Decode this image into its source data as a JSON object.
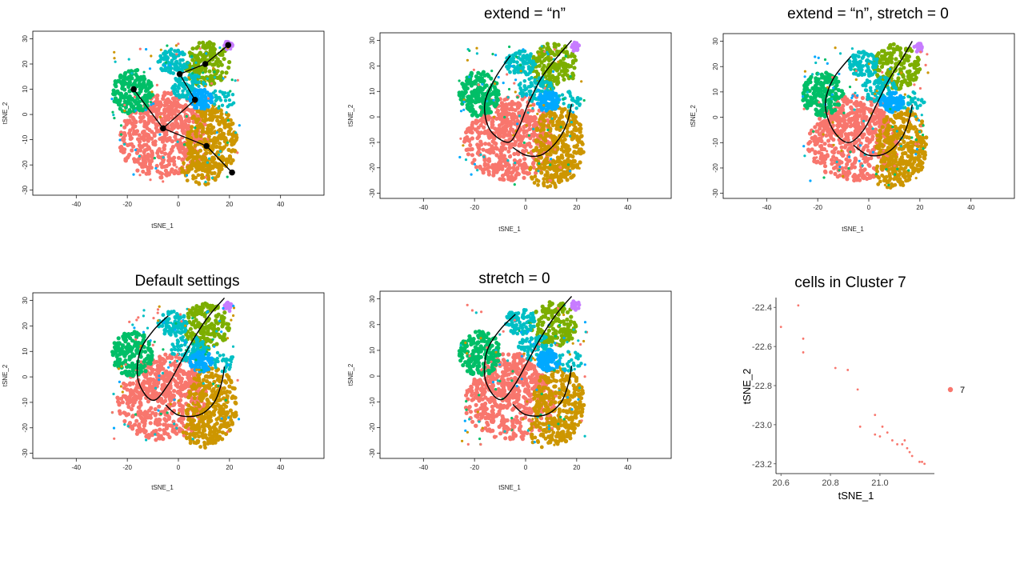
{
  "colors": {
    "cluster_1": "#F8766D",
    "cluster_2": "#CD9600",
    "cluster_3": "#7CAE00",
    "cluster_4": "#00BE67",
    "cluster_5": "#00BFC4",
    "cluster_6": "#00A9FF",
    "cluster_7": "#C77CFF",
    "curve": "#000000"
  },
  "chart_data": [
    {
      "type": "scatter",
      "title": "",
      "xlabel": "tSNE_1",
      "ylabel": "tSNE_2",
      "xticks": [
        -40,
        -20,
        0,
        20,
        40
      ],
      "yticks": [
        -30,
        -20,
        -10,
        0,
        10,
        20,
        30
      ],
      "xlim": [
        -57,
        57
      ],
      "ylim": [
        -32,
        33
      ],
      "overlay": "lineages",
      "lineage_nodes": [
        [
          -17.5,
          10
        ],
        [
          -6,
          -5.5
        ],
        [
          0.5,
          16
        ],
        [
          6.5,
          5.8
        ],
        [
          11,
          -12.5
        ],
        [
          21,
          -23
        ],
        [
          10.5,
          20
        ],
        [
          19.5,
          27.5
        ]
      ],
      "lineage_edges": [
        [
          0,
          1
        ],
        [
          1,
          3
        ],
        [
          3,
          2
        ],
        [
          2,
          6
        ],
        [
          6,
          7
        ],
        [
          1,
          4
        ],
        [
          4,
          5
        ]
      ]
    },
    {
      "type": "scatter",
      "title": "extend = “n”",
      "xlabel": "tSNE_1",
      "ylabel": "tSNE_2",
      "xticks": [
        -40,
        -20,
        0,
        20,
        40
      ],
      "yticks": [
        -30,
        -20,
        -10,
        0,
        10,
        20,
        30
      ],
      "xlim": [
        -57,
        57
      ],
      "ylim": [
        -32,
        33
      ],
      "overlay": "curves",
      "curves": [
        [
          [
            -6,
            24
          ],
          [
            -12,
            15
          ],
          [
            -16,
            5
          ],
          [
            -14,
            -5
          ],
          [
            -7,
            -10
          ],
          [
            -3,
            -5
          ],
          [
            1,
            5
          ],
          [
            6,
            15
          ],
          [
            12,
            23
          ],
          [
            18,
            30
          ]
        ],
        [
          [
            -5,
            -12
          ],
          [
            0,
            -15
          ],
          [
            6,
            -15
          ],
          [
            12,
            -10
          ],
          [
            16,
            -3
          ],
          [
            18,
            5
          ]
        ]
      ]
    },
    {
      "type": "scatter",
      "title": "extend = “n”, stretch = 0",
      "xlabel": "tSNE_1",
      "ylabel": "tSNE_2",
      "xticks": [
        -40,
        -20,
        0,
        20,
        40
      ],
      "yticks": [
        -30,
        -20,
        -10,
        0,
        10,
        20,
        30
      ],
      "xlim": [
        -57,
        57
      ],
      "ylim": [
        -32,
        33
      ],
      "overlay": "curves",
      "curves": [
        [
          [
            -7,
            24
          ],
          [
            -14,
            15
          ],
          [
            -17,
            5
          ],
          [
            -14,
            -5
          ],
          [
            -8,
            -10
          ],
          [
            -2,
            -5
          ],
          [
            3,
            5
          ],
          [
            8,
            15
          ],
          [
            13,
            23
          ],
          [
            17,
            30
          ]
        ],
        [
          [
            -6,
            -11
          ],
          [
            0,
            -15
          ],
          [
            7,
            -14
          ],
          [
            13,
            -8
          ],
          [
            16,
            0
          ],
          [
            17,
            5
          ]
        ]
      ]
    },
    {
      "type": "scatter",
      "title": "Default settings",
      "xlabel": "tSNE_1",
      "ylabel": "tSNE_2",
      "xticks": [
        -40,
        -20,
        0,
        20,
        40
      ],
      "yticks": [
        -30,
        -20,
        -10,
        0,
        10,
        20,
        30
      ],
      "xlim": [
        -57,
        57
      ],
      "ylim": [
        -32,
        33
      ],
      "overlay": "curves",
      "curves": [
        [
          [
            -4,
            24
          ],
          [
            -10,
            18
          ],
          [
            -15,
            10
          ],
          [
            -16,
            0
          ],
          [
            -13,
            -7
          ],
          [
            -9,
            -9
          ],
          [
            -4,
            -3
          ],
          [
            1,
            6
          ],
          [
            6,
            15
          ],
          [
            12,
            24
          ],
          [
            18,
            31
          ]
        ],
        [
          [
            -5,
            -11
          ],
          [
            0,
            -15
          ],
          [
            8,
            -15
          ],
          [
            14,
            -10
          ],
          [
            17,
            -2
          ],
          [
            18,
            4
          ]
        ]
      ]
    },
    {
      "type": "scatter",
      "title": "stretch = 0",
      "xlabel": "tSNE_1",
      "ylabel": "tSNE_2",
      "xticks": [
        -40,
        -20,
        0,
        20,
        40
      ],
      "yticks": [
        -30,
        -20,
        -10,
        0,
        10,
        20,
        30
      ],
      "xlim": [
        -57,
        57
      ],
      "ylim": [
        -32,
        33
      ],
      "overlay": "curves",
      "curves": [
        [
          [
            -4,
            24
          ],
          [
            -10,
            18
          ],
          [
            -15,
            10
          ],
          [
            -16,
            0
          ],
          [
            -13,
            -7
          ],
          [
            -9,
            -9
          ],
          [
            -4,
            -3
          ],
          [
            1,
            6
          ],
          [
            6,
            15
          ],
          [
            12,
            24
          ],
          [
            18,
            31
          ]
        ],
        [
          [
            -5,
            -11
          ],
          [
            0,
            -15
          ],
          [
            8,
            -15
          ],
          [
            14,
            -10
          ],
          [
            17,
            -2
          ],
          [
            18,
            4
          ]
        ]
      ]
    },
    {
      "type": "scatter",
      "title": "cells in Cluster 7",
      "xlabel": "tSNE_1",
      "ylabel": "tSNE_2",
      "xticks": [
        20.6,
        20.8,
        21.0
      ],
      "yticks": [
        -22.4,
        -22.6,
        -22.8,
        -23.0,
        -23.2
      ],
      "xlim": [
        20.58,
        21.22
      ],
      "ylim": [
        -23.25,
        -22.35
      ],
      "legend": [
        {
          "label": "7",
          "color": "#F8766D"
        }
      ],
      "legend_position": "right",
      "points": [
        [
          20.6,
          -22.5
        ],
        [
          20.67,
          -22.39
        ],
        [
          20.69,
          -22.56
        ],
        [
          20.69,
          -22.63
        ],
        [
          20.82,
          -22.71
        ],
        [
          20.87,
          -22.72
        ],
        [
          20.91,
          -22.82
        ],
        [
          20.92,
          -23.01
        ],
        [
          20.98,
          -22.95
        ],
        [
          20.98,
          -23.05
        ],
        [
          21.01,
          -23.01
        ],
        [
          21.0,
          -23.06
        ],
        [
          21.03,
          -23.04
        ],
        [
          21.05,
          -23.08
        ],
        [
          21.07,
          -23.1
        ],
        [
          21.09,
          -23.1
        ],
        [
          21.1,
          -23.08
        ],
        [
          21.11,
          -23.12
        ],
        [
          21.12,
          -23.14
        ],
        [
          21.13,
          -23.16
        ],
        [
          21.16,
          -23.19
        ],
        [
          21.17,
          -23.19
        ],
        [
          21.18,
          -23.2
        ]
      ]
    }
  ]
}
